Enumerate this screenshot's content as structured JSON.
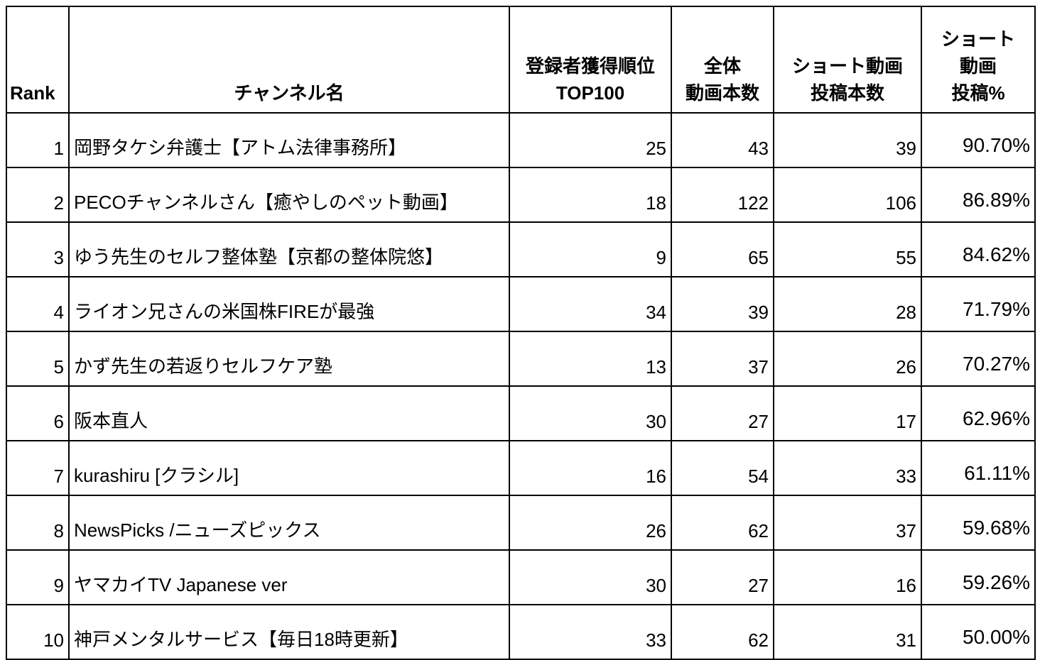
{
  "table": {
    "headers": [
      "Rank",
      "チャンネル名",
      "登録者獲得順位\nTOP100",
      "全体\n動画本数",
      "ショート動画\n投稿本数",
      "ショート\n動画\n投稿%"
    ],
    "rows": [
      [
        "1",
        "岡野タケシ弁護士【アトム法律事務所】",
        "25",
        "43",
        "39",
        "90.70%"
      ],
      [
        "2",
        "PECOチャンネルさん【癒やしのペット動画】",
        "18",
        "122",
        "106",
        "86.89%"
      ],
      [
        "3",
        "ゆう先生のセルフ整体塾【京都の整体院悠】",
        "9",
        "65",
        "55",
        "84.62%"
      ],
      [
        "4",
        "ライオン兄さんの米国株FIREが最強",
        "34",
        "39",
        "28",
        "71.79%"
      ],
      [
        "5",
        "かず先生の若返りセルフケア塾",
        "13",
        "37",
        "26",
        "70.27%"
      ],
      [
        "6",
        "阪本直人",
        "30",
        "27",
        "17",
        "62.96%"
      ],
      [
        "7",
        "kurashiru [クラシル]",
        "16",
        "54",
        "33",
        "61.11%"
      ],
      [
        "8",
        "NewsPicks /ニューズピックス",
        "26",
        "62",
        "37",
        "59.68%"
      ],
      [
        "9",
        "ヤマカイTV Japanese ver",
        "30",
        "27",
        "16",
        "59.26%"
      ],
      [
        "10",
        "神戸メンタルサービス【毎日18時更新】",
        "33",
        "62",
        "31",
        "50.00%"
      ]
    ]
  }
}
